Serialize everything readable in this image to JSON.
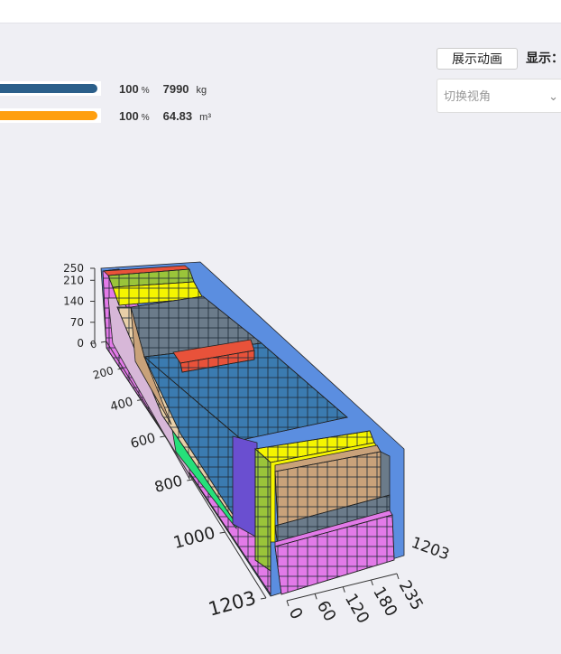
{
  "stats": [
    {
      "percent": 100,
      "percent_unit": "%",
      "amount": 7990,
      "amount_unit": "kg",
      "color": "#2b5f8a"
    },
    {
      "percent": 100,
      "percent_unit": "%",
      "amount": 64.83,
      "amount_unit": "m³",
      "color": "#ff9f0f"
    }
  ],
  "controls": {
    "animate_button": "展示动画",
    "display_label": "显示：",
    "view_select_placeholder": "切换视角"
  },
  "scene": {
    "length_axis": {
      "ticks": [
        0,
        200,
        400,
        600,
        800,
        1000,
        1203
      ]
    },
    "height_axis": {
      "ticks": [
        0,
        70,
        140,
        210,
        250
      ]
    },
    "width_axis": {
      "ticks": [
        0,
        60,
        120,
        180,
        235
      ]
    },
    "far_length_label": 1203
  }
}
